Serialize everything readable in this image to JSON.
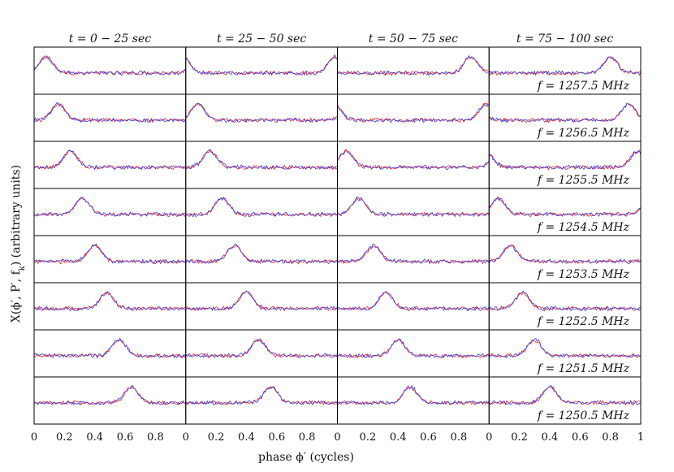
{
  "chart_data": {
    "type": "line",
    "layout": "small-multiples grid, 8 rows x 4 columns, shared axes",
    "columns": [
      {
        "title": "t = 0 − 25 sec",
        "t_start_sec": 0,
        "t_end_sec": 25
      },
      {
        "title": "t = 25 − 50 sec",
        "t_start_sec": 25,
        "t_end_sec": 50
      },
      {
        "title": "t = 50 − 75 sec",
        "t_start_sec": 50,
        "t_end_sec": 75
      },
      {
        "title": "t = 75 − 100 sec",
        "t_start_sec": 75,
        "t_end_sec": 100
      }
    ],
    "rows": [
      {
        "label": "f = 1257.5 MHz",
        "freq_mhz": 1257.5,
        "peak_phase": [
          0.08,
          0.98,
          0.88,
          0.8
        ]
      },
      {
        "label": "f = 1256.5 MHz",
        "freq_mhz": 1256.5,
        "peak_phase": [
          0.16,
          0.08,
          0.98,
          0.92
        ]
      },
      {
        "label": "f = 1255.5 MHz",
        "freq_mhz": 1255.5,
        "peak_phase": [
          0.24,
          0.16,
          0.06,
          0.98
        ]
      },
      {
        "label": "f = 1254.5 MHz",
        "freq_mhz": 1254.5,
        "peak_phase": [
          0.32,
          0.24,
          0.14,
          0.06
        ]
      },
      {
        "label": "f = 1253.5 MHz",
        "freq_mhz": 1253.5,
        "peak_phase": [
          0.4,
          0.32,
          0.24,
          0.14
        ]
      },
      {
        "label": "f = 1252.5 MHz",
        "freq_mhz": 1252.5,
        "peak_phase": [
          0.48,
          0.4,
          0.32,
          0.22
        ]
      },
      {
        "label": "f = 1251.5 MHz",
        "freq_mhz": 1251.5,
        "peak_phase": [
          0.56,
          0.48,
          0.4,
          0.3
        ]
      },
      {
        "label": "f = 1250.5 MHz",
        "freq_mhz": 1250.5,
        "peak_phase": [
          0.64,
          0.56,
          0.48,
          0.4
        ]
      }
    ],
    "series": [
      {
        "color": "#e8202a"
      },
      {
        "color": "#3a3ad8"
      }
    ],
    "xlabel": "phase ϕ′ (cycles)",
    "ylabel": "X(ϕ′, P′, f",
    "ylabel_sub": "k",
    "ylabel_tail": ") (arbitrary units)",
    "xlim": [
      0,
      1
    ],
    "x_ticks": [
      "0",
      "0.2",
      "0.4",
      "0.6",
      "0.8"
    ],
    "x_tick_last": "1",
    "x_tick_values": [
      0,
      0.2,
      0.4,
      0.6,
      0.8
    ],
    "grid": false
  }
}
